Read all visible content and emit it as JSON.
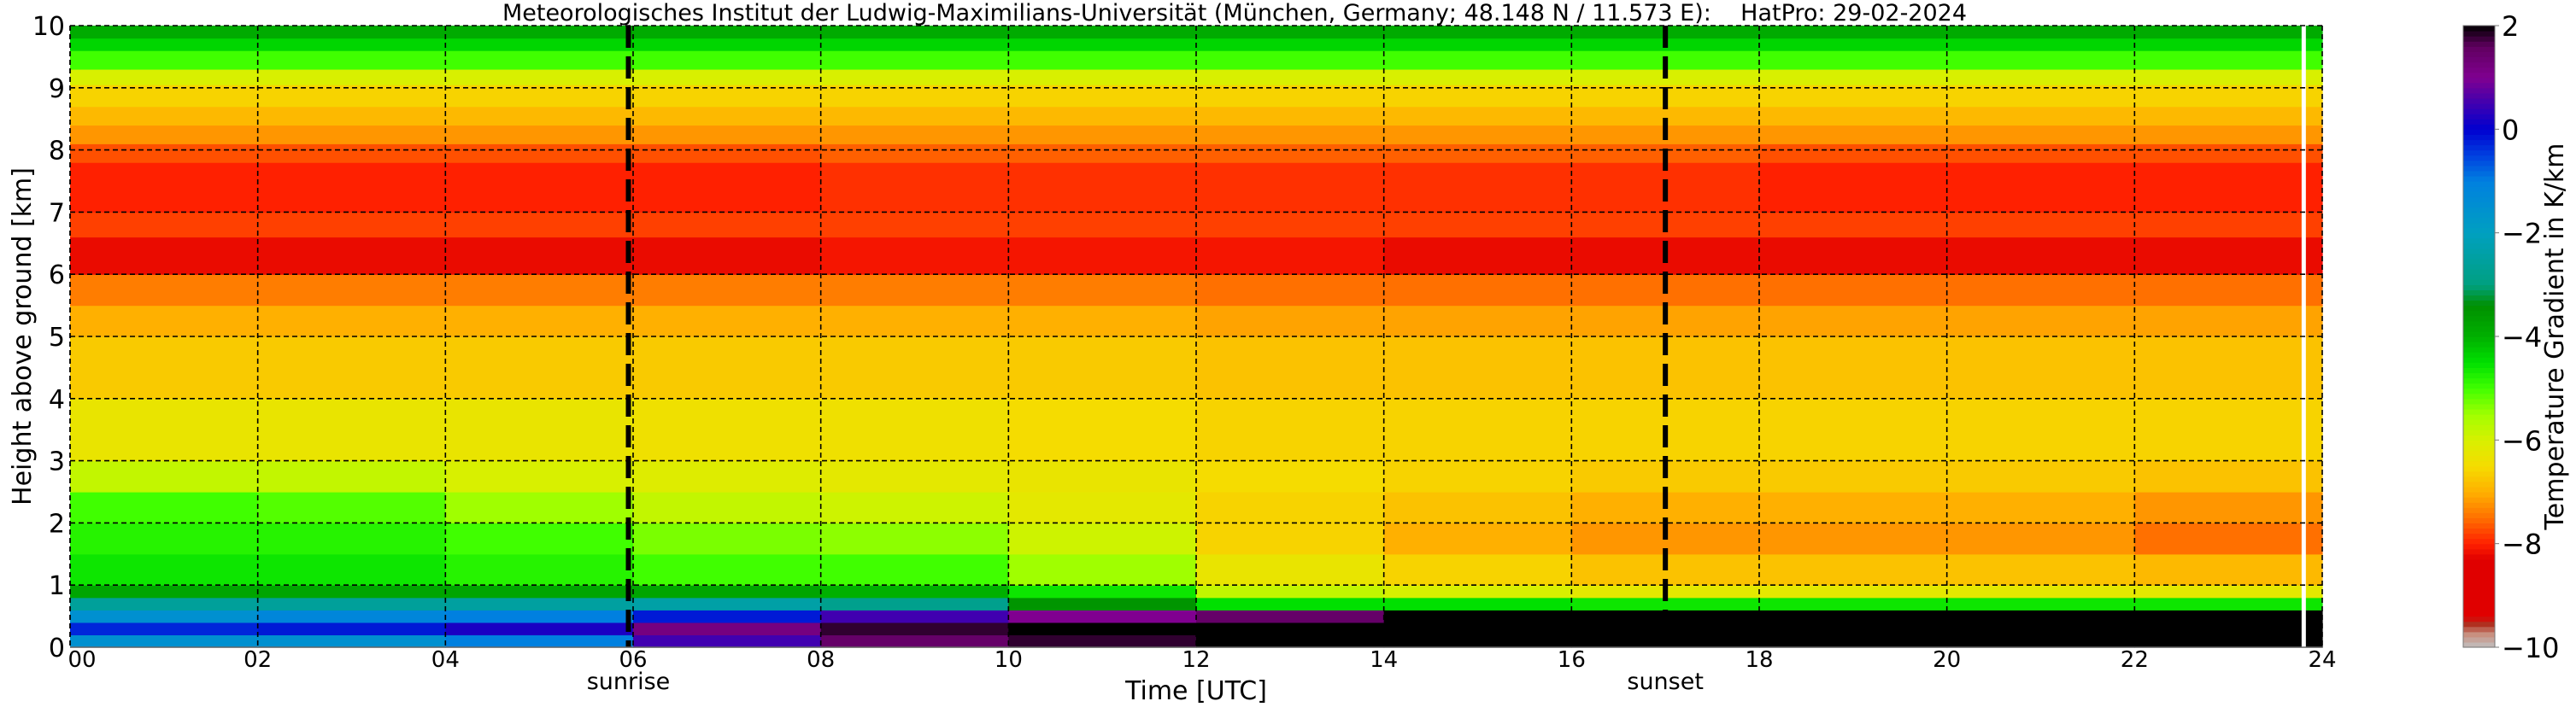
{
  "chart_data": {
    "type": "heatmap",
    "title": "Meteorologisches Institut der Ludwig-Maximilians-Universität (München, Germany; 48.148 N / 11.573 E):    HatPro: 29-02-2024",
    "xlabel": "Time [UTC]",
    "ylabel": "Height above ground [km]",
    "xlim": [
      0,
      24
    ],
    "ylim": [
      0,
      10
    ],
    "x_ticks": [
      "00",
      "02",
      "04",
      "06",
      "08",
      "10",
      "12",
      "14",
      "16",
      "18",
      "20",
      "22",
      "24"
    ],
    "y_ticks": [
      "0",
      "1",
      "2",
      "3",
      "4",
      "5",
      "6",
      "7",
      "8",
      "9",
      "10"
    ],
    "grid": true,
    "annotations": [
      {
        "label": "sunrise",
        "time": 5.95
      },
      {
        "label": "sunset",
        "time": 17.0
      }
    ],
    "time_bins": [
      0,
      2,
      4,
      6,
      8,
      10,
      12,
      14,
      16,
      18,
      20,
      22,
      24
    ],
    "height_bins": [
      0,
      0.2,
      0.4,
      0.6,
      0.8,
      1.0,
      1.5,
      2.0,
      2.5,
      3.0,
      4.0,
      5.0,
      5.5,
      6.0,
      6.6,
      7.0,
      7.8,
      8.1,
      8.4,
      8.7,
      9.05,
      9.3,
      9.6,
      9.8,
      10
    ],
    "z": [
      [
        -1.5,
        -1.5,
        -1.0,
        0.5,
        1.5,
        1.8,
        2,
        2,
        2,
        2,
        2,
        2
      ],
      [
        -0.3,
        -0.2,
        0.2,
        1.2,
        1.8,
        2,
        2,
        2,
        2,
        2,
        2,
        2
      ],
      [
        -1.5,
        -1.2,
        -1.0,
        -0.2,
        0.5,
        1.0,
        1.5,
        2,
        2,
        2,
        2,
        2
      ],
      [
        -2.6,
        -2.6,
        -2.5,
        -2.4,
        -2.8,
        -3.5,
        -4.5,
        -4.5,
        -4.6,
        -4.6,
        -4.6,
        -4.6
      ],
      [
        -3.8,
        -3.8,
        -3.8,
        -3.8,
        -4.0,
        -4.6,
        -5.8,
        -6.0,
        -6.2,
        -6.2,
        -6.2,
        -6.2
      ],
      [
        -4.6,
        -4.6,
        -4.8,
        -5.0,
        -5.0,
        -5.5,
        -6.3,
        -6.6,
        -6.8,
        -6.8,
        -6.8,
        -6.9
      ],
      [
        -4.8,
        -4.8,
        -5.0,
        -5.3,
        -5.4,
        -5.9,
        -6.6,
        -7.0,
        -7.2,
        -7.2,
        -7.2,
        -7.5
      ],
      [
        -5.0,
        -5.1,
        -5.5,
        -5.8,
        -5.9,
        -6.2,
        -6.6,
        -6.8,
        -7.0,
        -7.0,
        -7.0,
        -7.2
      ],
      [
        -5.8,
        -5.8,
        -6.0,
        -6.1,
        -6.2,
        -6.3,
        -6.5,
        -6.6,
        -6.7,
        -6.7,
        -6.7,
        -6.8
      ],
      [
        -6.3,
        -6.3,
        -6.3,
        -6.4,
        -6.4,
        -6.5,
        -6.6,
        -6.6,
        -6.6,
        -6.6,
        -6.6,
        -6.6
      ],
      [
        -6.7,
        -6.7,
        -6.7,
        -6.7,
        -6.7,
        -6.7,
        -6.8,
        -6.8,
        -6.8,
        -6.8,
        -6.8,
        -6.8
      ],
      [
        -7.0,
        -7.0,
        -7.0,
        -7.0,
        -7.0,
        -7.0,
        -7.1,
        -7.1,
        -7.1,
        -7.1,
        -7.1,
        -7.1
      ],
      [
        -7.4,
        -7.4,
        -7.4,
        -7.4,
        -7.4,
        -7.4,
        -7.5,
        -7.5,
        -7.5,
        -7.5,
        -7.5,
        -7.5
      ],
      [
        -8.2,
        -8.2,
        -8.2,
        -8.2,
        -8.1,
        -8.1,
        -8.1,
        -8.2,
        -8.2,
        -8.2,
        -8.2,
        -8.2
      ],
      [
        -7.8,
        -7.8,
        -7.8,
        -7.8,
        -7.8,
        -7.8,
        -7.8,
        -7.8,
        -7.8,
        -7.8,
        -7.8,
        -7.8
      ],
      [
        -8.0,
        -8.0,
        -8.0,
        -8.0,
        -7.9,
        -7.9,
        -7.9,
        -7.9,
        -7.9,
        -8.0,
        -8.0,
        -8.0
      ],
      [
        -7.7,
        -7.7,
        -7.7,
        -7.7,
        -7.6,
        -7.6,
        -7.6,
        -7.6,
        -7.6,
        -7.7,
        -7.7,
        -7.7
      ],
      [
        -7.2,
        -7.2,
        -7.2,
        -7.2,
        -7.2,
        -7.2,
        -7.2,
        -7.2,
        -7.2,
        -7.2,
        -7.2,
        -7.2
      ],
      [
        -6.9,
        -6.9,
        -6.9,
        -6.9,
        -6.9,
        -6.9,
        -6.9,
        -6.9,
        -6.9,
        -6.9,
        -6.9,
        -6.9
      ],
      [
        -6.6,
        -6.6,
        -6.6,
        -6.6,
        -6.6,
        -6.6,
        -6.6,
        -6.6,
        -6.6,
        -6.6,
        -6.6,
        -6.6
      ],
      [
        -6.0,
        -6.0,
        -6.0,
        -6.0,
        -6.0,
        -6.0,
        -6.0,
        -6.0,
        -6.0,
        -6.0,
        -6.0,
        -6.0
      ],
      [
        -5.0,
        -5.0,
        -5.0,
        -5.0,
        -5.0,
        -5.0,
        -5.0,
        -5.0,
        -5.0,
        -5.0,
        -5.0,
        -5.0
      ],
      [
        -4.4,
        -4.4,
        -4.4,
        -4.4,
        -4.4,
        -4.4,
        -4.4,
        -4.4,
        -4.4,
        -4.4,
        -4.4,
        -4.4
      ],
      [
        -3.9,
        -3.9,
        -3.9,
        -3.9,
        -3.9,
        -3.9,
        -3.9,
        -3.9,
        -3.9,
        -3.9,
        -3.9,
        -3.9
      ]
    ],
    "colorbar": {
      "label": "Temperature Gradient in K/km",
      "range": [
        -10,
        2
      ],
      "ticks": [
        "2",
        "0",
        "−2",
        "−4",
        "−6",
        "−8",
        "−10"
      ],
      "tick_values": [
        2,
        0,
        -2,
        -4,
        -6,
        -8,
        -10
      ],
      "stops": [
        [
          -10,
          "#c0c0c0"
        ],
        [
          -9.75,
          "#c89080"
        ],
        [
          -9.55,
          "#b03020"
        ],
        [
          -9.4,
          "#e00000"
        ],
        [
          -8.3,
          "#e00000"
        ],
        [
          -8,
          "#ff2000"
        ],
        [
          -7.5,
          "#ff7000"
        ],
        [
          -7,
          "#ffb000"
        ],
        [
          -6.5,
          "#f5dc00"
        ],
        [
          -6,
          "#d8f000"
        ],
        [
          -5.5,
          "#a0ff00"
        ],
        [
          -5,
          "#40ff00"
        ],
        [
          -4.5,
          "#00e000"
        ],
        [
          -4,
          "#00b000"
        ],
        [
          -3.4,
          "#009000"
        ],
        [
          -3,
          "#00a080"
        ],
        [
          -2,
          "#00a0c0"
        ],
        [
          -1,
          "#0080e0"
        ],
        [
          -0.5,
          "#0040e0"
        ],
        [
          0,
          "#0000d0"
        ],
        [
          0.5,
          "#4000b0"
        ],
        [
          1,
          "#800090"
        ],
        [
          1.6,
          "#600060"
        ],
        [
          2,
          "#000000"
        ]
      ]
    }
  }
}
